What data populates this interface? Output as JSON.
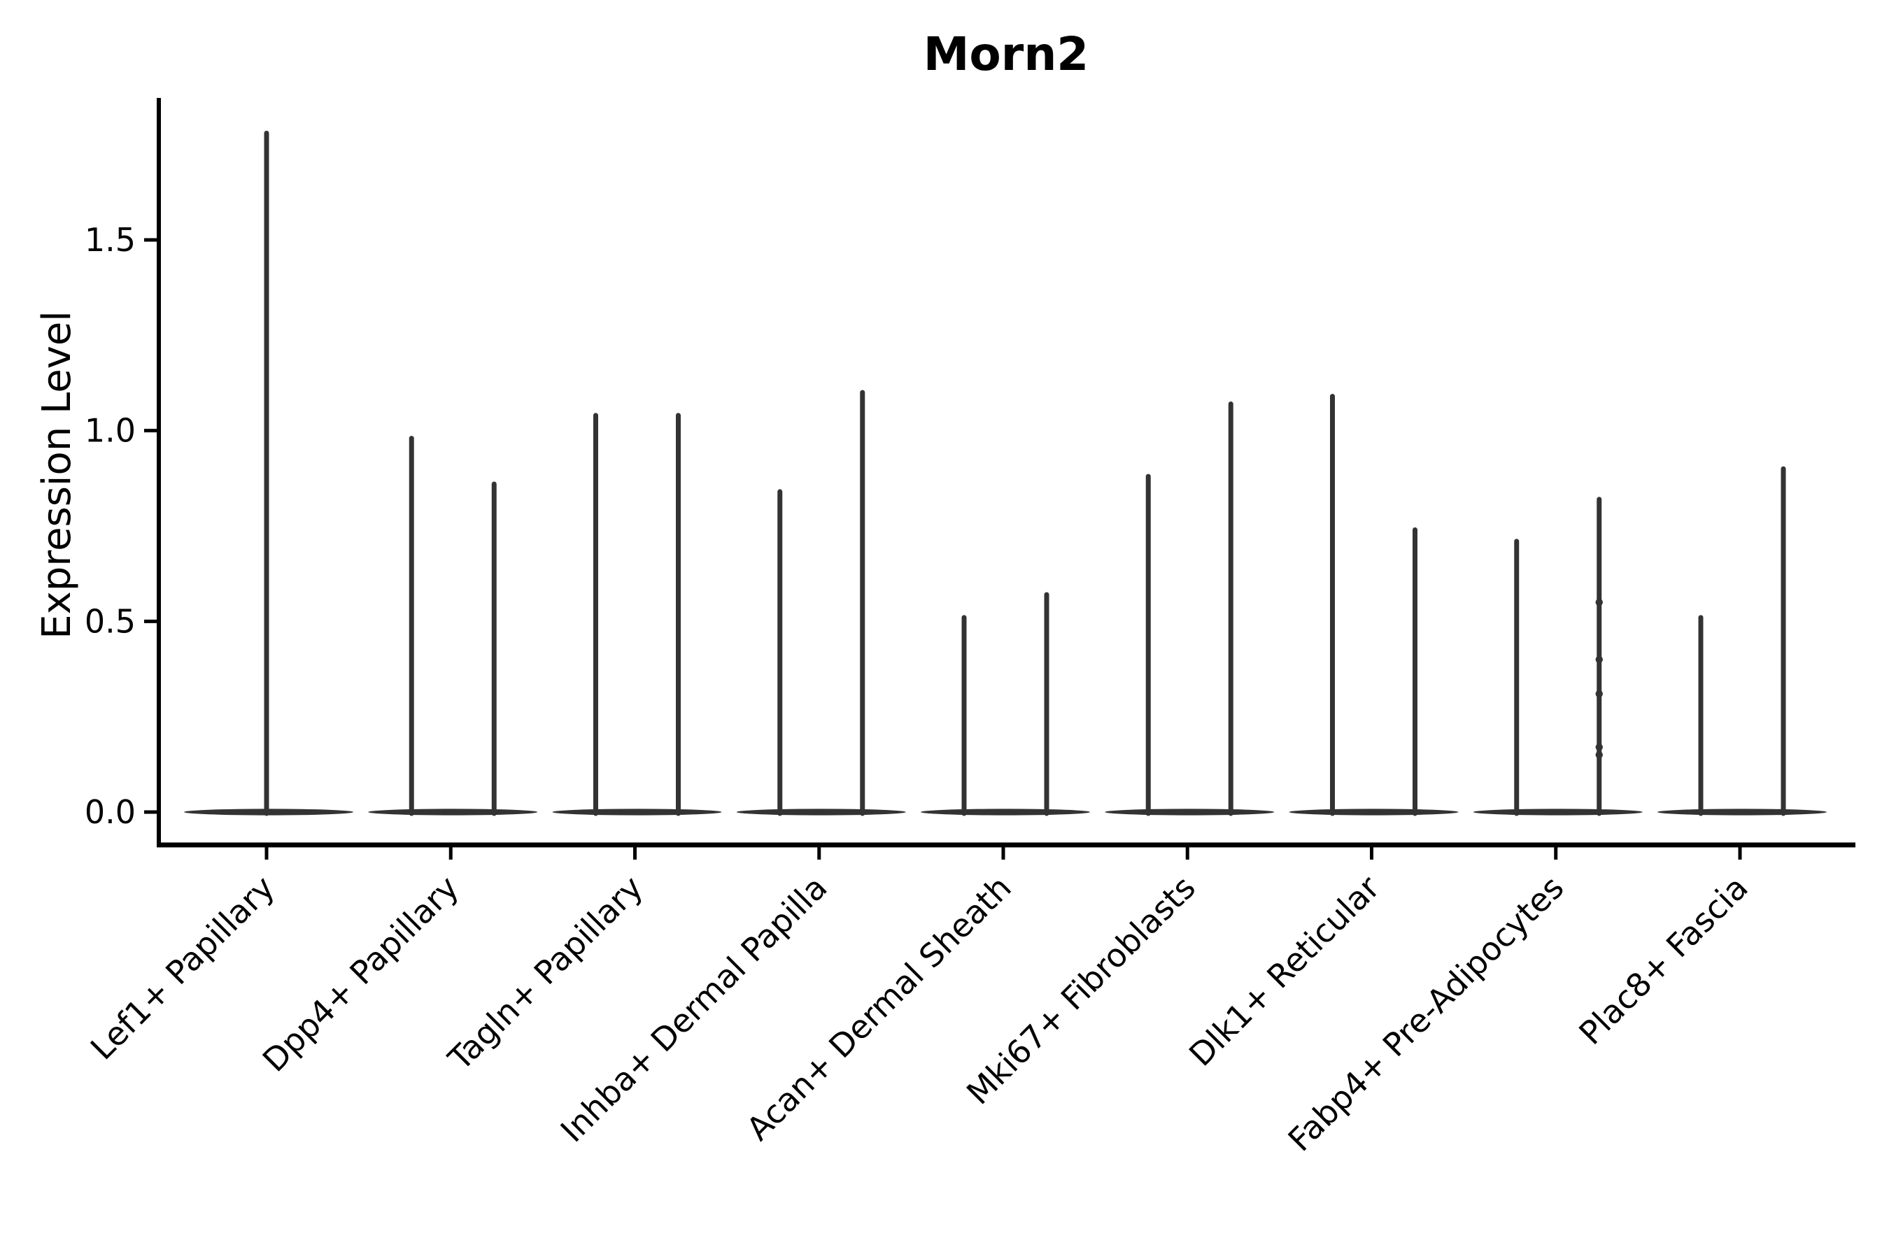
{
  "title": "Morn2",
  "y_axis": {
    "label": "Expression Level",
    "ticks": [
      {
        "label": "0.0",
        "value": 0.0
      },
      {
        "label": "0.5",
        "value": 0.5
      },
      {
        "label": "1.0",
        "value": 1.0
      },
      {
        "label": "1.5",
        "value": 1.5
      }
    ]
  },
  "chart_data": {
    "type": "violin",
    "title": "Morn2",
    "xlabel": "",
    "ylabel": "Expression Level",
    "ylim": [
      0,
      1.87
    ],
    "yticks": [
      0.0,
      0.5,
      1.0,
      1.5
    ],
    "grid": false,
    "legend": false,
    "violin_color": "#333333",
    "axis_color": "#000000",
    "description": "Thin violin plots collapsed at zero expression; each category shows needle-like violins whose tips mark the maximum expression level.",
    "categories": [
      "Lef1+ Papillary",
      "Dpp4+ Papillary",
      "Tagln+ Papillary",
      "Inhba+ Dermal Papilla",
      "Acan+ Dermal Sheath",
      "Mki67+ Fibroblasts",
      "Dlk1+ Reticular",
      "Fabp4+ Pre-Adipocytes",
      "Plac8+ Fascia"
    ],
    "groups": [
      {
        "label": "Lef1+ Papillary",
        "violins": [
          {
            "position": "center",
            "max": 1.78
          }
        ]
      },
      {
        "label": "Dpp4+ Papillary",
        "violins": [
          {
            "position": "left",
            "max": 0.98
          },
          {
            "position": "right",
            "max": 0.86
          }
        ]
      },
      {
        "label": "Tagln+ Papillary",
        "violins": [
          {
            "position": "left",
            "max": 1.04
          },
          {
            "position": "right",
            "max": 1.04
          }
        ]
      },
      {
        "label": "Inhba+ Dermal Papilla",
        "violins": [
          {
            "position": "left",
            "max": 0.84
          },
          {
            "position": "right",
            "max": 1.1
          }
        ]
      },
      {
        "label": "Acan+ Dermal Sheath",
        "violins": [
          {
            "position": "left",
            "max": 0.51
          },
          {
            "position": "right",
            "max": 0.57
          }
        ]
      },
      {
        "label": "Mki67+ Fibroblasts",
        "violins": [
          {
            "position": "left",
            "max": 0.88
          },
          {
            "position": "right",
            "max": 1.07
          }
        ]
      },
      {
        "label": "Dlk1+ Reticular",
        "violins": [
          {
            "position": "left",
            "max": 1.09
          },
          {
            "position": "right",
            "max": 0.74
          }
        ]
      },
      {
        "label": "Fabp4+ Pre-Adipocytes",
        "violins": [
          {
            "position": "left",
            "max": 0.71
          },
          {
            "position": "right",
            "max": 0.82,
            "points": [
              0.55,
              0.4,
              0.31,
              0.17,
              0.15
            ]
          }
        ]
      },
      {
        "label": "Plac8+ Fascia",
        "violins": [
          {
            "position": "left",
            "max": 0.51
          },
          {
            "position": "right",
            "max": 0.9
          }
        ]
      }
    ]
  }
}
